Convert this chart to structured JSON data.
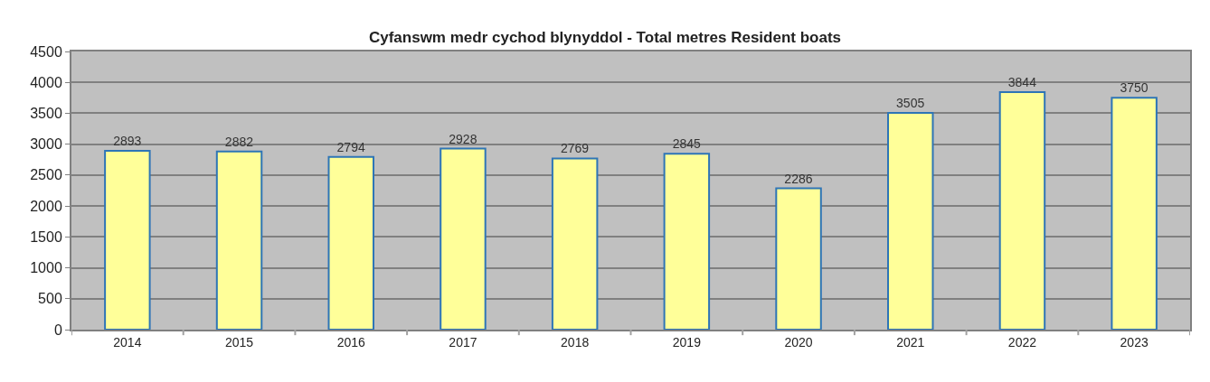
{
  "chart_data": {
    "type": "bar",
    "title": "Cyfanswm medr cychod blynyddol - Total metres Resident boats",
    "categories": [
      "2014",
      "2015",
      "2016",
      "2017",
      "2018",
      "2019",
      "2020",
      "2021",
      "2022",
      "2023"
    ],
    "values": [
      2893,
      2882,
      2794,
      2928,
      2769,
      2845,
      2286,
      3505,
      3844,
      3750
    ],
    "color": "#ffff99",
    "ylim": [
      0,
      4500
    ],
    "yticks": [
      0,
      500,
      1000,
      1500,
      2000,
      2500,
      3000,
      3500,
      4000,
      4500
    ],
    "grid": "y",
    "data_labels": true
  }
}
